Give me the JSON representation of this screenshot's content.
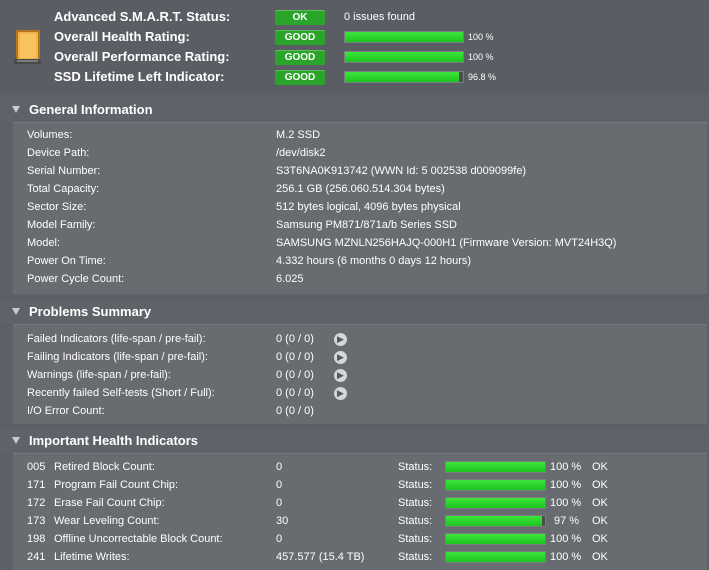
{
  "summary": {
    "rows": [
      {
        "label": "Advanced S.M.A.R.T. Status:",
        "badge": "OK",
        "text": "0 issues found"
      },
      {
        "label": "Overall Health Rating:",
        "badge": "GOOD",
        "percent": "100 %",
        "level": 100
      },
      {
        "label": "Overall Performance Rating:",
        "badge": "GOOD",
        "percent": "100 %",
        "level": 100
      },
      {
        "label": "SSD Lifetime Left Indicator:",
        "badge": "GOOD",
        "percent": "96.8 %",
        "level": 96.8
      }
    ]
  },
  "general": {
    "title": "General Information",
    "rows": [
      {
        "label": "Volumes:",
        "value": "M.2 SSD"
      },
      {
        "label": "Device Path:",
        "value": "/dev/disk2"
      },
      {
        "label": "Serial Number:",
        "value": "S3T6NA0K913742 (WWN Id: 5 002538 d009099fe)"
      },
      {
        "label": "Total Capacity:",
        "value": "256.1 GB (256.060.514.304 bytes)"
      },
      {
        "label": "Sector Size:",
        "value": "512 bytes logical, 4096 bytes physical"
      },
      {
        "label": "Model Family:",
        "value": "Samsung PM871/871a/b Series SSD"
      },
      {
        "label": "Model:",
        "value": "SAMSUNG MZNLN256HAJQ-000H1  (Firmware Version: MVT24H3Q)"
      },
      {
        "label": "Power On Time:",
        "value": "4.332 hours (6 months 0 days 12 hours)"
      },
      {
        "label": "Power Cycle Count:",
        "value": "6.025"
      }
    ]
  },
  "problems": {
    "title": "Problems Summary",
    "rows": [
      {
        "label": "Failed Indicators (life-span / pre-fail):",
        "value": "0 (0 / 0)",
        "arrow": true
      },
      {
        "label": "Failing Indicators (life-span / pre-fail):",
        "value": "0 (0 / 0)",
        "arrow": true
      },
      {
        "label": "Warnings (life-span / pre-fail):",
        "value": "0 (0 / 0)",
        "arrow": true
      },
      {
        "label": "Recently failed Self-tests (Short / Full):",
        "value": "0 (0 / 0)",
        "arrow": true
      },
      {
        "label": "I/O Error Count:",
        "value": "0 (0 / 0)",
        "arrow": false
      }
    ]
  },
  "health": {
    "title": "Important Health Indicators",
    "status_label": "Status:",
    "rows": [
      {
        "id": "005",
        "label": "Retired Block Count:",
        "value": "0",
        "percent": "100 %",
        "level": 100,
        "state": "OK"
      },
      {
        "id": "171",
        "label": "Program Fail Count Chip:",
        "value": "0",
        "percent": "100 %",
        "level": 100,
        "state": "OK"
      },
      {
        "id": "172",
        "label": "Erase Fail Count Chip:",
        "value": "0",
        "percent": "100 %",
        "level": 100,
        "state": "OK"
      },
      {
        "id": "173",
        "label": "Wear Leveling Count:",
        "value": "30",
        "percent": "97 %",
        "level": 97,
        "state": "OK"
      },
      {
        "id": "198",
        "label": "Offline Uncorrectable Block Count:",
        "value": "0",
        "percent": "100 %",
        "level": 100,
        "state": "OK"
      },
      {
        "id": "241",
        "label": "Lifetime Writes:",
        "value": "457.577 (15.4 TB)",
        "percent": "100 %",
        "level": 100,
        "state": "OK"
      }
    ]
  },
  "colors": {
    "good": "#2aa52a",
    "bar": "#22cc22"
  },
  "icons": {
    "drive": "ssd-drive-icon",
    "arrow": "arrow-right-circle-icon",
    "disclosure": "disclosure-triangle-icon"
  }
}
